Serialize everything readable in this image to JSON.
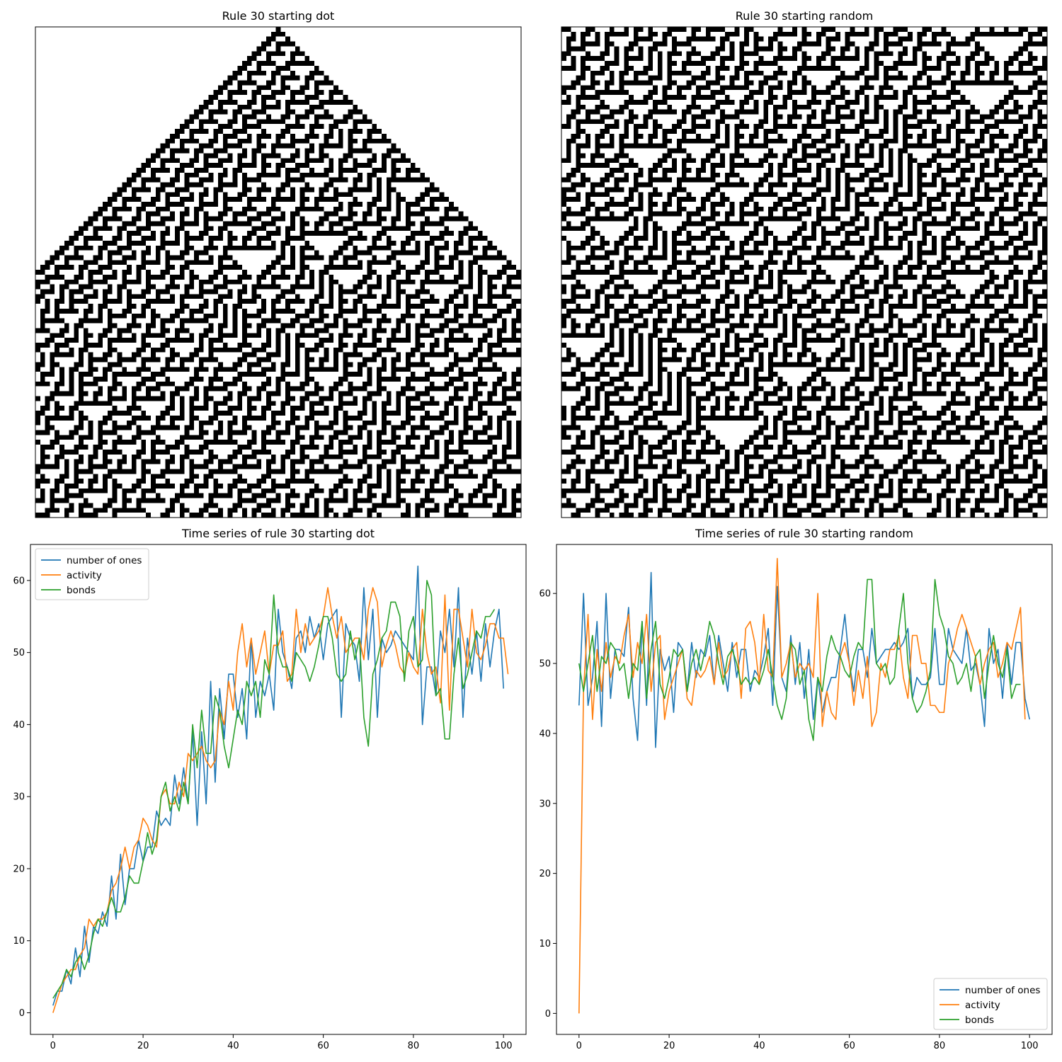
{
  "chart_data": [
    {
      "type": "heatmap",
      "title": "Rule 30 starting dot",
      "rule": 30,
      "width_cells": 101,
      "height_cells": 101,
      "initial_condition": "single",
      "colors": {
        "on": "#000000",
        "off": "#ffffff"
      }
    },
    {
      "type": "heatmap",
      "title": "Rule 30 starting random",
      "rule": 30,
      "width_cells": 101,
      "height_cells": 101,
      "initial_condition": "random",
      "colors": {
        "on": "#000000",
        "off": "#ffffff"
      }
    },
    {
      "type": "line",
      "title": "Time series of rule 30 starting dot",
      "xlim": [
        -5,
        105
      ],
      "ylim": [
        -3,
        65
      ],
      "xticks": [
        0,
        20,
        40,
        60,
        80,
        100
      ],
      "yticks": [
        0,
        10,
        20,
        30,
        40,
        50,
        60
      ],
      "legend": "upper-left",
      "series": [
        {
          "name": "number of ones",
          "color": "#1f77b4",
          "values": [
            1,
            3,
            3,
            6,
            4,
            9,
            5,
            12,
            7,
            12,
            11,
            14,
            12,
            19,
            13,
            22,
            15,
            20,
            20,
            24,
            21,
            23,
            23,
            28,
            26,
            27,
            26,
            33,
            29,
            34,
            29,
            39,
            26,
            39,
            29,
            46,
            32,
            45,
            38,
            47,
            47,
            41,
            45,
            38,
            52,
            41,
            46,
            44,
            47,
            42,
            56,
            50,
            48,
            45,
            52,
            53,
            50,
            55,
            52,
            54,
            49,
            54,
            55,
            56,
            41,
            54,
            52,
            51,
            46,
            59,
            49,
            56,
            41,
            52,
            50,
            51,
            53,
            52,
            51,
            50,
            49,
            62,
            40,
            48,
            48,
            44,
            53,
            50,
            56,
            48,
            59,
            41,
            52,
            47,
            53,
            46,
            54,
            48,
            53,
            56,
            45
          ]
        },
        {
          "name": "activity",
          "color": "#ff7f0e",
          "values": [
            0,
            2,
            4,
            5,
            6,
            6,
            8,
            9,
            13,
            12,
            13,
            13,
            14,
            17,
            18,
            20,
            23,
            20,
            23,
            24,
            27,
            26,
            24,
            23,
            30,
            31,
            29,
            29,
            32,
            30,
            36,
            35,
            36,
            37,
            35,
            34,
            35,
            42,
            40,
            46,
            42,
            50,
            54,
            48,
            52,
            47,
            50,
            53,
            47,
            51,
            51,
            53,
            46,
            47,
            56,
            50,
            54,
            51,
            52,
            53,
            55,
            59,
            55,
            52,
            55,
            50,
            51,
            52,
            52,
            49,
            56,
            59,
            57,
            48,
            51,
            53,
            51,
            48,
            47,
            50,
            48,
            47,
            56,
            50,
            47,
            48,
            43,
            58,
            42,
            56,
            56,
            52,
            48,
            56,
            50,
            49,
            51,
            54,
            54,
            52,
            52,
            47
          ]
        },
        {
          "name": "bonds",
          "color": "#2ca02c",
          "values": [
            2,
            3,
            4,
            6,
            5,
            7,
            8,
            6,
            8,
            11,
            13,
            12,
            14,
            16,
            14,
            14,
            16,
            19,
            18,
            18,
            21,
            25,
            22,
            24,
            30,
            32,
            28,
            30,
            28,
            32,
            29,
            40,
            34,
            42,
            36,
            36,
            44,
            42,
            37,
            34,
            38,
            42,
            40,
            46,
            44,
            46,
            41,
            49,
            47,
            58,
            50,
            48,
            48,
            46,
            50,
            49,
            48,
            46,
            48,
            51,
            55,
            55,
            52,
            47,
            46,
            47,
            53,
            49,
            52,
            41,
            37,
            47,
            49,
            52,
            53,
            57,
            57,
            55,
            46,
            53,
            55,
            48,
            49,
            60,
            58,
            44,
            45,
            38,
            38,
            47,
            52,
            45,
            47,
            50,
            53,
            52,
            55,
            55,
            56
          ]
        }
      ]
    },
    {
      "type": "line",
      "title": "Time series of rule 30 starting random",
      "xlim": [
        -5,
        105
      ],
      "ylim": [
        -3,
        67
      ],
      "xticks": [
        0,
        20,
        40,
        60,
        80,
        100
      ],
      "yticks": [
        0,
        10,
        20,
        30,
        40,
        50,
        60
      ],
      "legend": "lower-right",
      "series": [
        {
          "name": "number of ones",
          "color": "#1f77b4",
          "values": [
            44,
            60,
            44,
            48,
            56,
            41,
            60,
            45,
            52,
            52,
            51,
            58,
            45,
            39,
            56,
            44,
            63,
            38,
            52,
            49,
            51,
            43,
            53,
            52,
            46,
            53,
            48,
            52,
            51,
            54,
            47,
            54,
            50,
            46,
            53,
            48,
            52,
            52,
            46,
            49,
            48,
            51,
            55,
            44,
            61,
            48,
            46,
            54,
            47,
            53,
            45,
            52,
            42,
            48,
            43,
            46,
            48,
            48,
            52,
            57,
            50,
            46,
            52,
            52,
            48,
            55,
            50,
            51,
            52,
            52,
            53,
            52,
            53,
            55,
            45,
            48,
            47,
            47,
            48,
            55,
            47,
            47,
            55,
            52,
            51,
            50,
            55,
            49,
            50,
            47,
            41,
            55,
            50,
            52,
            45,
            53,
            47,
            53,
            53,
            45,
            42
          ]
        },
        {
          "name": "activity",
          "color": "#ff7f0e",
          "values": [
            0,
            46,
            57,
            42,
            52,
            46,
            53,
            48,
            51,
            50,
            54,
            57,
            48,
            53,
            50,
            57,
            46,
            53,
            54,
            42,
            46,
            48,
            50,
            52,
            45,
            44,
            49,
            48,
            49,
            51,
            47,
            53,
            48,
            49,
            52,
            53,
            45,
            55,
            56,
            53,
            47,
            57,
            49,
            48,
            65,
            48,
            50,
            53,
            48,
            50,
            49,
            50,
            48,
            60,
            41,
            46,
            43,
            42,
            51,
            53,
            50,
            44,
            49,
            45,
            51,
            41,
            43,
            50,
            48,
            52,
            52,
            54,
            48,
            45,
            54,
            54,
            50,
            50,
            44,
            44,
            43,
            43,
            50,
            52,
            55,
            57,
            55,
            53,
            51,
            47,
            50,
            52,
            53,
            48,
            50,
            53,
            52,
            55,
            58,
            42
          ]
        },
        {
          "name": "bonds",
          "color": "#2ca02c",
          "values": [
            50,
            46,
            50,
            54,
            46,
            51,
            50,
            53,
            52,
            49,
            50,
            45,
            50,
            49,
            56,
            45,
            52,
            56,
            47,
            45,
            48,
            52,
            51,
            52,
            46,
            50,
            52,
            49,
            52,
            56,
            54,
            50,
            47,
            51,
            52,
            50,
            47,
            48,
            47,
            48,
            47,
            49,
            52,
            48,
            44,
            42,
            45,
            53,
            52,
            47,
            49,
            42,
            39,
            48,
            46,
            51,
            54,
            52,
            51,
            49,
            48,
            51,
            53,
            52,
            62,
            62,
            50,
            49,
            50,
            47,
            48,
            55,
            60,
            50,
            45,
            43,
            44,
            46,
            49,
            62,
            57,
            55,
            51,
            50,
            47,
            48,
            50,
            46,
            51,
            52,
            45,
            50,
            54,
            50,
            48,
            52,
            45,
            47,
            47
          ]
        }
      ]
    }
  ]
}
